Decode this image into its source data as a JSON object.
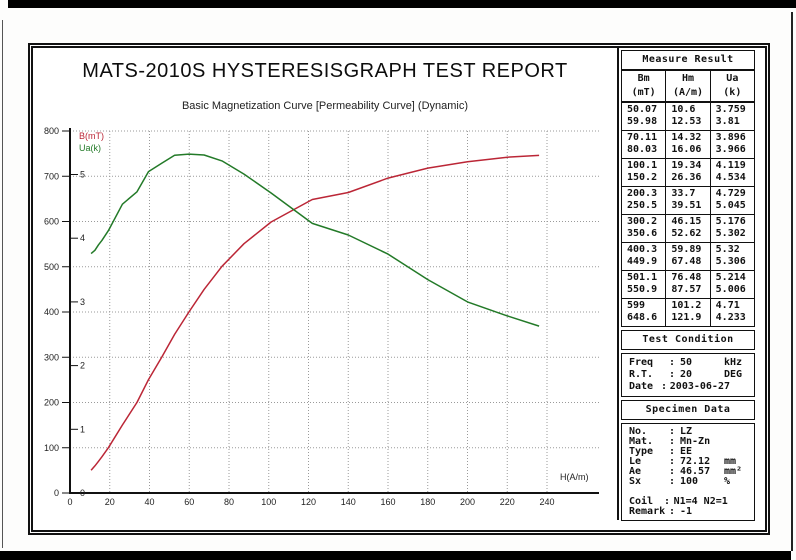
{
  "report": {
    "title": "MATS-2010S HYSTERESISGRAPH TEST REPORT",
    "subtitle": "Basic Magnetization Curve [Permeability Curve] (Dynamic)"
  },
  "chart_data": {
    "type": "line",
    "grid": "dotted",
    "x_axis": {
      "label": "H(A/m)",
      "min": 0,
      "max": 240,
      "tick_step": 20
    },
    "y_axis_b": {
      "label": "B(mT)",
      "min": 0,
      "max": 800,
      "tick_step": 100,
      "color": "#bb2636"
    },
    "y_axis_ua": {
      "label": "Ua(k)",
      "min": 0,
      "max": 5,
      "tick_step": 1,
      "color": "#237a28"
    },
    "series": [
      {
        "name": "B(mT)",
        "axis": "B",
        "color": "#bb2636",
        "points": [
          [
            10.6,
            50.07
          ],
          [
            12.53,
            59.98
          ],
          [
            14.32,
            70.11
          ],
          [
            16.06,
            80.03
          ],
          [
            19.34,
            100.1
          ],
          [
            26.36,
            150.2
          ],
          [
            33.7,
            200.3
          ],
          [
            39.51,
            250.5
          ],
          [
            46.15,
            300.2
          ],
          [
            52.62,
            350.6
          ],
          [
            59.89,
            400.3
          ],
          [
            67.48,
            449.9
          ],
          [
            76.48,
            501.1
          ],
          [
            87.57,
            550.9
          ],
          [
            101.2,
            599
          ],
          [
            121.9,
            648.6
          ],
          [
            140,
            664
          ],
          [
            160,
            696
          ],
          [
            180,
            718
          ],
          [
            200,
            732
          ],
          [
            220,
            742
          ],
          [
            236,
            746
          ]
        ]
      },
      {
        "name": "Ua(k)",
        "axis": "Ua",
        "color": "#237a28",
        "points": [
          [
            10.6,
            3.759
          ],
          [
            12.53,
            3.81
          ],
          [
            14.32,
            3.896
          ],
          [
            16.06,
            3.966
          ],
          [
            19.34,
            4.119
          ],
          [
            26.36,
            4.534
          ],
          [
            33.7,
            4.729
          ],
          [
            39.51,
            5.045
          ],
          [
            46.15,
            5.176
          ],
          [
            52.62,
            5.302
          ],
          [
            59.89,
            5.32
          ],
          [
            67.48,
            5.306
          ],
          [
            76.48,
            5.214
          ],
          [
            87.57,
            5.006
          ],
          [
            101.2,
            4.71
          ],
          [
            121.9,
            4.233
          ],
          [
            140,
            4.05
          ],
          [
            160,
            3.75
          ],
          [
            180,
            3.35
          ],
          [
            200,
            3.0
          ],
          [
            220,
            2.78
          ],
          [
            236,
            2.62
          ]
        ]
      }
    ]
  },
  "measure_result": {
    "title": "Measure Result",
    "columns": [
      {
        "name": "Bm",
        "unit": "(mT)"
      },
      {
        "name": "Hm",
        "unit": "(A/m)"
      },
      {
        "name": "Ua",
        "unit": "(k)"
      }
    ],
    "rows": [
      {
        "bm": [
          "50.07",
          "59.98"
        ],
        "hm": [
          "10.6",
          "12.53"
        ],
        "ua": [
          "3.759",
          "3.81"
        ]
      },
      {
        "bm": [
          "70.11",
          "80.03"
        ],
        "hm": [
          "14.32",
          "16.06"
        ],
        "ua": [
          "3.896",
          "3.966"
        ]
      },
      {
        "bm": [
          "100.1",
          "150.2"
        ],
        "hm": [
          "19.34",
          "26.36"
        ],
        "ua": [
          "4.119",
          "4.534"
        ]
      },
      {
        "bm": [
          "200.3",
          "250.5"
        ],
        "hm": [
          "33.7",
          "39.51"
        ],
        "ua": [
          "4.729",
          "5.045"
        ]
      },
      {
        "bm": [
          "300.2",
          "350.6"
        ],
        "hm": [
          "46.15",
          "52.62"
        ],
        "ua": [
          "5.176",
          "5.302"
        ]
      },
      {
        "bm": [
          "400.3",
          "449.9"
        ],
        "hm": [
          "59.89",
          "67.48"
        ],
        "ua": [
          "5.32",
          "5.306"
        ]
      },
      {
        "bm": [
          "501.1",
          "550.9"
        ],
        "hm": [
          "76.48",
          "87.57"
        ],
        "ua": [
          "5.214",
          "5.006"
        ]
      },
      {
        "bm": [
          "599",
          "648.6"
        ],
        "hm": [
          "101.2",
          "121.9"
        ],
        "ua": [
          "4.71",
          "4.233"
        ]
      }
    ]
  },
  "test_condition": {
    "title": "Test Condition",
    "rows": [
      {
        "label": "Freq",
        "value": "50",
        "unit": "kHz"
      },
      {
        "label": "R.T.",
        "value": "20",
        "unit": "DEG"
      },
      {
        "label": "Date",
        "value": "2003-06-27",
        "unit": ""
      }
    ]
  },
  "specimen_data": {
    "title": "Specimen Data",
    "rows": [
      {
        "label": "No.",
        "value": "LZ",
        "unit": ""
      },
      {
        "label": "Mat.",
        "value": "Mn-Zn",
        "unit": ""
      },
      {
        "label": "Type",
        "value": "EE",
        "unit": ""
      },
      {
        "label": "Le",
        "value": "72.12",
        "unit": "mm"
      },
      {
        "label": "Ae",
        "value": "46.57",
        "unit": "mm²"
      },
      {
        "label": "Sx",
        "value": "100",
        "unit": "%"
      },
      {
        "label": "",
        "value": "",
        "unit": ""
      },
      {
        "label": "Coil",
        "value": "N1=4 N2=1",
        "unit": ""
      },
      {
        "label": "Remark",
        "value": "-1",
        "unit": ""
      }
    ]
  }
}
